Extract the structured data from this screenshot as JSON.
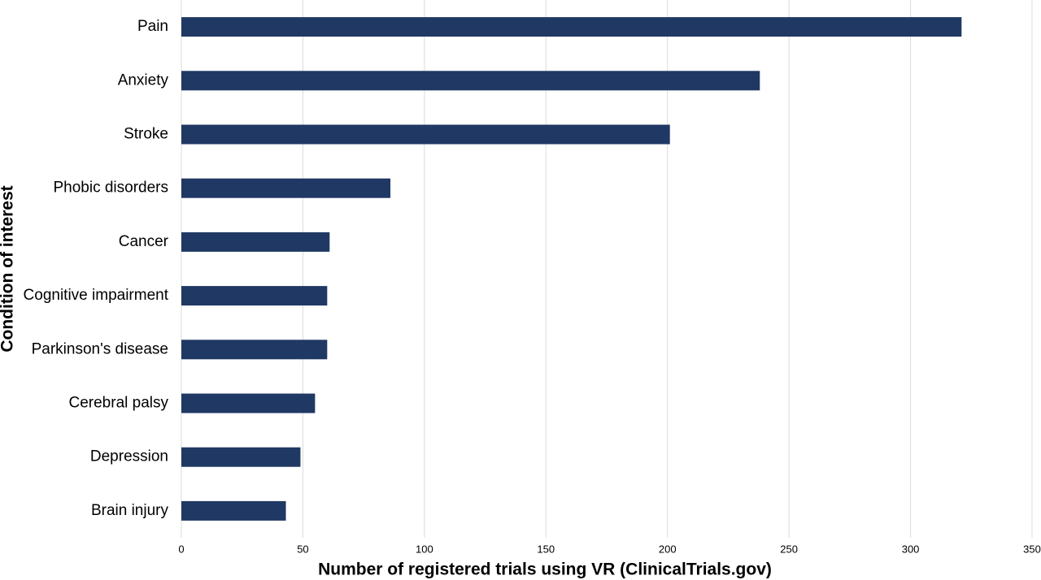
{
  "chart_data": {
    "type": "bar",
    "orientation": "horizontal",
    "x_label": "Number of registered trials using VR (ClinicalTrials.gov)",
    "y_label": "Condition of interest",
    "categories": [
      "Pain",
      "Anxiety",
      "Stroke",
      "Phobic disorders",
      "Cancer",
      "Cognitive impairment",
      "Parkinson's disease",
      "Cerebral palsy",
      "Depression",
      "Brain injury"
    ],
    "values": [
      321,
      238,
      201,
      86,
      61,
      60,
      60,
      55,
      49,
      43
    ],
    "color": "#203864",
    "xlim": [
      0,
      350
    ],
    "xticks": [
      0,
      50,
      100,
      150,
      200,
      250,
      300,
      350
    ],
    "grid": true
  }
}
